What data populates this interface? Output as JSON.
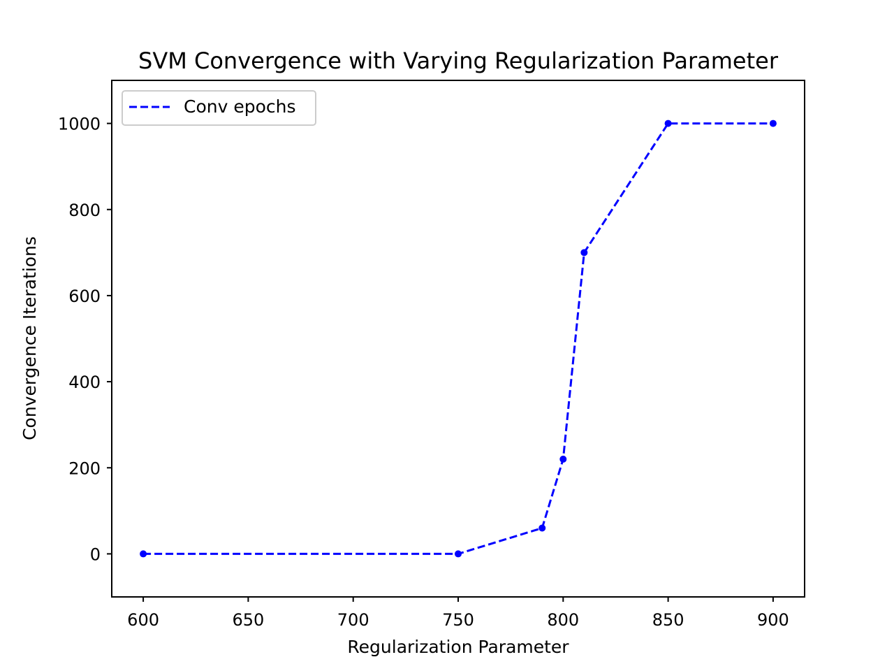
{
  "chart_data": {
    "type": "line",
    "title": "SVM Convergence with Varying Regularization Parameter",
    "xlabel": "Regularization Parameter",
    "ylabel": "Convergence Iterations",
    "xlim": [
      585,
      915
    ],
    "ylim": [
      -100,
      1100
    ],
    "xticks": [
      600,
      650,
      700,
      750,
      800,
      850,
      900
    ],
    "yticks": [
      0,
      200,
      400,
      600,
      800,
      1000
    ],
    "grid": false,
    "legend_position": "top-left",
    "series": [
      {
        "name": "Conv epochs",
        "color": "#0000ff",
        "line_style": "dashed",
        "marker": "dot",
        "x": [
          600,
          750,
          790,
          800,
          810,
          850,
          900
        ],
        "y": [
          0,
          0,
          60,
          220,
          700,
          1000,
          1000
        ]
      }
    ]
  }
}
